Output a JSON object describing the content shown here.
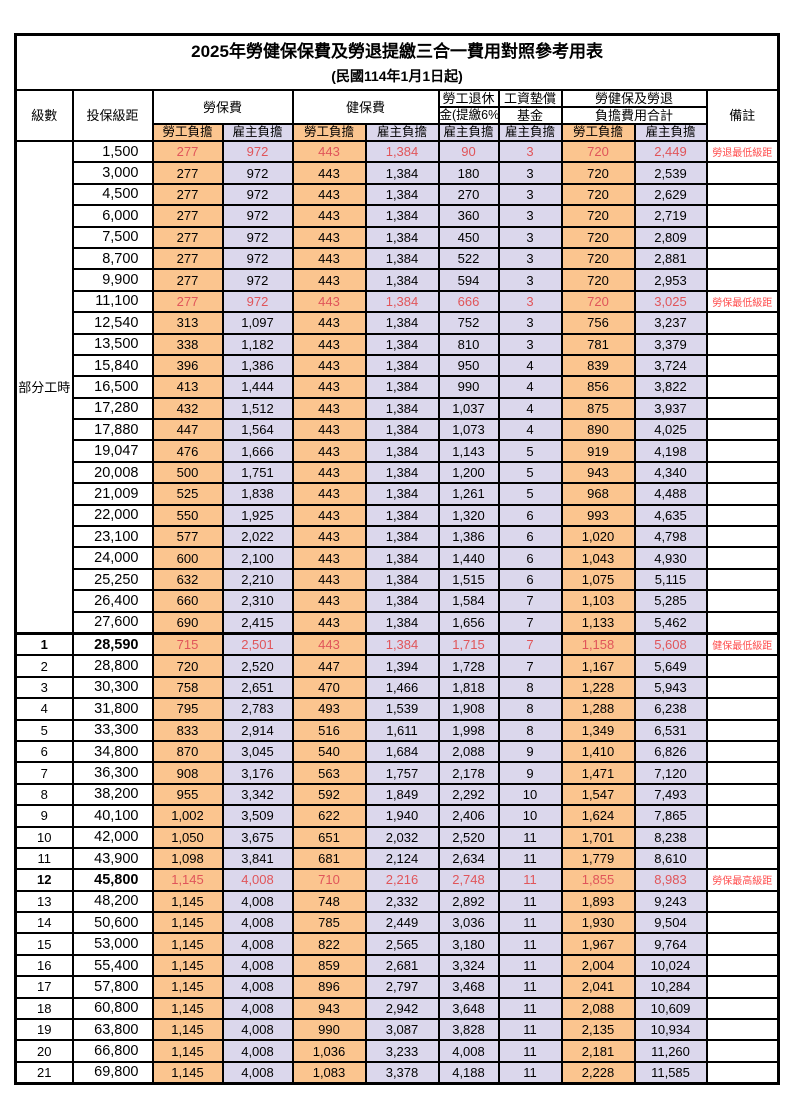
{
  "title": "2025年勞健保保費及勞退提繳三合一費用對照參考用表",
  "subtitle": "(民國114年1月1日起)",
  "colors": {
    "worker_bg": "#FBC58F",
    "employer_bg": "#DBD7EC",
    "highlight_value_text": "#E0555A",
    "remark_text": "#FF4C4C",
    "border": "#000000"
  },
  "header": {
    "level": "級數",
    "salary": "投保級距",
    "labor_fee": "勞保費",
    "health_fee": "健保費",
    "pension_line1": "勞工退休",
    "pension_line2": "金(提繳6%)",
    "wage_fund_line1": "工資墊償",
    "wage_fund_line2": "基金",
    "total_line1": "勞健保及勞退",
    "total_line2": "負擔費用合計",
    "remark": "備註",
    "worker_burden": "勞工負擔",
    "employer_burden": "雇主負擔"
  },
  "table": {
    "part_time_label": "部分工時",
    "part_time_row_count": 23,
    "section_break_index": 23,
    "rows": [
      {
        "level": "",
        "salary": "1,500",
        "values": [
          "277",
          "972",
          "443",
          "1,384",
          "90",
          "3",
          "720",
          "2,449"
        ],
        "remark": "勞退最低級距",
        "hl": true,
        "em": false
      },
      {
        "level": "",
        "salary": "3,000",
        "values": [
          "277",
          "972",
          "443",
          "1,384",
          "180",
          "3",
          "720",
          "2,539"
        ],
        "remark": "",
        "hl": false,
        "em": false
      },
      {
        "level": "",
        "salary": "4,500",
        "values": [
          "277",
          "972",
          "443",
          "1,384",
          "270",
          "3",
          "720",
          "2,629"
        ],
        "remark": "",
        "hl": false,
        "em": false
      },
      {
        "level": "",
        "salary": "6,000",
        "values": [
          "277",
          "972",
          "443",
          "1,384",
          "360",
          "3",
          "720",
          "2,719"
        ],
        "remark": "",
        "hl": false,
        "em": false
      },
      {
        "level": "",
        "salary": "7,500",
        "values": [
          "277",
          "972",
          "443",
          "1,384",
          "450",
          "3",
          "720",
          "2,809"
        ],
        "remark": "",
        "hl": false,
        "em": false
      },
      {
        "level": "",
        "salary": "8,700",
        "values": [
          "277",
          "972",
          "443",
          "1,384",
          "522",
          "3",
          "720",
          "2,881"
        ],
        "remark": "",
        "hl": false,
        "em": false
      },
      {
        "level": "",
        "salary": "9,900",
        "values": [
          "277",
          "972",
          "443",
          "1,384",
          "594",
          "3",
          "720",
          "2,953"
        ],
        "remark": "",
        "hl": false,
        "em": false
      },
      {
        "level": "",
        "salary": "11,100",
        "values": [
          "277",
          "972",
          "443",
          "1,384",
          "666",
          "3",
          "720",
          "3,025"
        ],
        "remark": "勞保最低級距",
        "hl": true,
        "em": false
      },
      {
        "level": "",
        "salary": "12,540",
        "values": [
          "313",
          "1,097",
          "443",
          "1,384",
          "752",
          "3",
          "756",
          "3,237"
        ],
        "remark": "",
        "hl": false,
        "em": false
      },
      {
        "level": "",
        "salary": "13,500",
        "values": [
          "338",
          "1,182",
          "443",
          "1,384",
          "810",
          "3",
          "781",
          "3,379"
        ],
        "remark": "",
        "hl": false,
        "em": false
      },
      {
        "level": "",
        "salary": "15,840",
        "values": [
          "396",
          "1,386",
          "443",
          "1,384",
          "950",
          "4",
          "839",
          "3,724"
        ],
        "remark": "",
        "hl": false,
        "em": false
      },
      {
        "level": "",
        "salary": "16,500",
        "values": [
          "413",
          "1,444",
          "443",
          "1,384",
          "990",
          "4",
          "856",
          "3,822"
        ],
        "remark": "",
        "hl": false,
        "em": false
      },
      {
        "level": "",
        "salary": "17,280",
        "values": [
          "432",
          "1,512",
          "443",
          "1,384",
          "1,037",
          "4",
          "875",
          "3,937"
        ],
        "remark": "",
        "hl": false,
        "em": false
      },
      {
        "level": "",
        "salary": "17,880",
        "values": [
          "447",
          "1,564",
          "443",
          "1,384",
          "1,073",
          "4",
          "890",
          "4,025"
        ],
        "remark": "",
        "hl": false,
        "em": false
      },
      {
        "level": "",
        "salary": "19,047",
        "values": [
          "476",
          "1,666",
          "443",
          "1,384",
          "1,143",
          "5",
          "919",
          "4,198"
        ],
        "remark": "",
        "hl": false,
        "em": false
      },
      {
        "level": "",
        "salary": "20,008",
        "values": [
          "500",
          "1,751",
          "443",
          "1,384",
          "1,200",
          "5",
          "943",
          "4,340"
        ],
        "remark": "",
        "hl": false,
        "em": false
      },
      {
        "level": "",
        "salary": "21,009",
        "values": [
          "525",
          "1,838",
          "443",
          "1,384",
          "1,261",
          "5",
          "968",
          "4,488"
        ],
        "remark": "",
        "hl": false,
        "em": false
      },
      {
        "level": "",
        "salary": "22,000",
        "values": [
          "550",
          "1,925",
          "443",
          "1,384",
          "1,320",
          "6",
          "993",
          "4,635"
        ],
        "remark": "",
        "hl": false,
        "em": false
      },
      {
        "level": "",
        "salary": "23,100",
        "values": [
          "577",
          "2,022",
          "443",
          "1,384",
          "1,386",
          "6",
          "1,020",
          "4,798"
        ],
        "remark": "",
        "hl": false,
        "em": false
      },
      {
        "level": "",
        "salary": "24,000",
        "values": [
          "600",
          "2,100",
          "443",
          "1,384",
          "1,440",
          "6",
          "1,043",
          "4,930"
        ],
        "remark": "",
        "hl": false,
        "em": false
      },
      {
        "level": "",
        "salary": "25,250",
        "values": [
          "632",
          "2,210",
          "443",
          "1,384",
          "1,515",
          "6",
          "1,075",
          "5,115"
        ],
        "remark": "",
        "hl": false,
        "em": false
      },
      {
        "level": "",
        "salary": "26,400",
        "values": [
          "660",
          "2,310",
          "443",
          "1,384",
          "1,584",
          "7",
          "1,103",
          "5,285"
        ],
        "remark": "",
        "hl": false,
        "em": false
      },
      {
        "level": "",
        "salary": "27,600",
        "values": [
          "690",
          "2,415",
          "443",
          "1,384",
          "1,656",
          "7",
          "1,133",
          "5,462"
        ],
        "remark": "",
        "hl": false,
        "em": false
      },
      {
        "level": "1",
        "salary": "28,590",
        "values": [
          "715",
          "2,501",
          "443",
          "1,384",
          "1,715",
          "7",
          "1,158",
          "5,608"
        ],
        "remark": "健保最低級距",
        "hl": true,
        "em": true
      },
      {
        "level": "2",
        "salary": "28,800",
        "values": [
          "720",
          "2,520",
          "447",
          "1,394",
          "1,728",
          "7",
          "1,167",
          "5,649"
        ],
        "remark": "",
        "hl": false,
        "em": false
      },
      {
        "level": "3",
        "salary": "30,300",
        "values": [
          "758",
          "2,651",
          "470",
          "1,466",
          "1,818",
          "8",
          "1,228",
          "5,943"
        ],
        "remark": "",
        "hl": false,
        "em": false
      },
      {
        "level": "4",
        "salary": "31,800",
        "values": [
          "795",
          "2,783",
          "493",
          "1,539",
          "1,908",
          "8",
          "1,288",
          "6,238"
        ],
        "remark": "",
        "hl": false,
        "em": false
      },
      {
        "level": "5",
        "salary": "33,300",
        "values": [
          "833",
          "2,914",
          "516",
          "1,611",
          "1,998",
          "8",
          "1,349",
          "6,531"
        ],
        "remark": "",
        "hl": false,
        "em": false
      },
      {
        "level": "6",
        "salary": "34,800",
        "values": [
          "870",
          "3,045",
          "540",
          "1,684",
          "2,088",
          "9",
          "1,410",
          "6,826"
        ],
        "remark": "",
        "hl": false,
        "em": false
      },
      {
        "level": "7",
        "salary": "36,300",
        "values": [
          "908",
          "3,176",
          "563",
          "1,757",
          "2,178",
          "9",
          "1,471",
          "7,120"
        ],
        "remark": "",
        "hl": false,
        "em": false
      },
      {
        "level": "8",
        "salary": "38,200",
        "values": [
          "955",
          "3,342",
          "592",
          "1,849",
          "2,292",
          "10",
          "1,547",
          "7,493"
        ],
        "remark": "",
        "hl": false,
        "em": false
      },
      {
        "level": "9",
        "salary": "40,100",
        "values": [
          "1,002",
          "3,509",
          "622",
          "1,940",
          "2,406",
          "10",
          "1,624",
          "7,865"
        ],
        "remark": "",
        "hl": false,
        "em": false
      },
      {
        "level": "10",
        "salary": "42,000",
        "values": [
          "1,050",
          "3,675",
          "651",
          "2,032",
          "2,520",
          "11",
          "1,701",
          "8,238"
        ],
        "remark": "",
        "hl": false,
        "em": false
      },
      {
        "level": "11",
        "salary": "43,900",
        "values": [
          "1,098",
          "3,841",
          "681",
          "2,124",
          "2,634",
          "11",
          "1,779",
          "8,610"
        ],
        "remark": "",
        "hl": false,
        "em": false
      },
      {
        "level": "12",
        "salary": "45,800",
        "values": [
          "1,145",
          "4,008",
          "710",
          "2,216",
          "2,748",
          "11",
          "1,855",
          "8,983"
        ],
        "remark": "勞保最高級距",
        "hl": true,
        "em": true
      },
      {
        "level": "13",
        "salary": "48,200",
        "values": [
          "1,145",
          "4,008",
          "748",
          "2,332",
          "2,892",
          "11",
          "1,893",
          "9,243"
        ],
        "remark": "",
        "hl": false,
        "em": false
      },
      {
        "level": "14",
        "salary": "50,600",
        "values": [
          "1,145",
          "4,008",
          "785",
          "2,449",
          "3,036",
          "11",
          "1,930",
          "9,504"
        ],
        "remark": "",
        "hl": false,
        "em": false
      },
      {
        "level": "15",
        "salary": "53,000",
        "values": [
          "1,145",
          "4,008",
          "822",
          "2,565",
          "3,180",
          "11",
          "1,967",
          "9,764"
        ],
        "remark": "",
        "hl": false,
        "em": false
      },
      {
        "level": "16",
        "salary": "55,400",
        "values": [
          "1,145",
          "4,008",
          "859",
          "2,681",
          "3,324",
          "11",
          "2,004",
          "10,024"
        ],
        "remark": "",
        "hl": false,
        "em": false
      },
      {
        "level": "17",
        "salary": "57,800",
        "values": [
          "1,145",
          "4,008",
          "896",
          "2,797",
          "3,468",
          "11",
          "2,041",
          "10,284"
        ],
        "remark": "",
        "hl": false,
        "em": false
      },
      {
        "level": "18",
        "salary": "60,800",
        "values": [
          "1,145",
          "4,008",
          "943",
          "2,942",
          "3,648",
          "11",
          "2,088",
          "10,609"
        ],
        "remark": "",
        "hl": false,
        "em": false
      },
      {
        "level": "19",
        "salary": "63,800",
        "values": [
          "1,145",
          "4,008",
          "990",
          "3,087",
          "3,828",
          "11",
          "2,135",
          "10,934"
        ],
        "remark": "",
        "hl": false,
        "em": false
      },
      {
        "level": "20",
        "salary": "66,800",
        "values": [
          "1,145",
          "4,008",
          "1,036",
          "3,233",
          "4,008",
          "11",
          "2,181",
          "11,260"
        ],
        "remark": "",
        "hl": false,
        "em": false
      },
      {
        "level": "21",
        "salary": "69,800",
        "values": [
          "1,145",
          "4,008",
          "1,083",
          "3,378",
          "4,188",
          "11",
          "2,228",
          "11,585"
        ],
        "remark": "",
        "hl": false,
        "em": false
      }
    ]
  }
}
